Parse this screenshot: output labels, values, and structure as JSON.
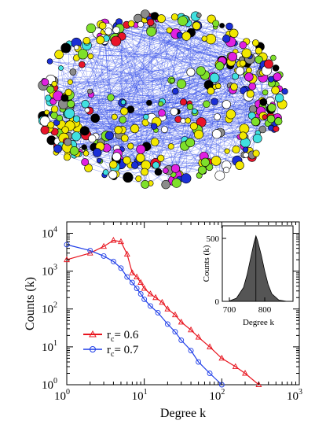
{
  "network": {
    "node_colors": [
      "#f2e800",
      "#f2e800",
      "#f2e800",
      "#f2e800",
      "#7ee02a",
      "#7ee02a",
      "#e8142a",
      "#1b2fd6",
      "#ffffff",
      "#8b8b8b",
      "#e020e0",
      "#40e0e0",
      "#000000"
    ],
    "edge_color": "#2a45e8"
  },
  "chart_data": [
    {
      "type": "line",
      "xlabel": "Degree k",
      "ylabel": "Counts (k)",
      "x_scale": "log",
      "y_scale": "log",
      "xlim": [
        1,
        1000
      ],
      "ylim": [
        1,
        20000
      ],
      "x_ticks": [
        {
          "v": 1,
          "b": "10",
          "e": "0"
        },
        {
          "v": 10,
          "b": "10",
          "e": "1"
        },
        {
          "v": 100,
          "b": "10",
          "e": "2"
        },
        {
          "v": 1000,
          "b": "10",
          "e": "3"
        }
      ],
      "y_ticks": [
        {
          "v": 1,
          "b": "10",
          "e": "0"
        },
        {
          "v": 10,
          "b": "10",
          "e": "1"
        },
        {
          "v": 100,
          "b": "10",
          "e": "2"
        },
        {
          "v": 1000,
          "b": "10",
          "e": "3"
        },
        {
          "v": 10000,
          "b": "10",
          "e": "4"
        }
      ],
      "series": [
        {
          "name": "r_c = 0.6",
          "label_main": "r",
          "label_sub": "c",
          "label_rest": "= 0.6",
          "color": "#e8141e",
          "marker": "triangle",
          "x": [
            1,
            2,
            3,
            4,
            5,
            6,
            7,
            8,
            9,
            10,
            12,
            14,
            17,
            20,
            25,
            30,
            40,
            50,
            70,
            100,
            150,
            200,
            300
          ],
          "y": [
            2000,
            3000,
            4500,
            6500,
            6000,
            2800,
            900,
            700,
            500,
            350,
            250,
            200,
            150,
            100,
            70,
            45,
            28,
            18,
            10,
            5,
            3,
            2,
            1
          ]
        },
        {
          "name": "r_c = 0.7",
          "label_main": "r",
          "label_sub": "c",
          "label_rest": "= 0.7",
          "color": "#1e3de8",
          "marker": "circle",
          "x": [
            1,
            2,
            3,
            4,
            5,
            6,
            7,
            8,
            9,
            10,
            12,
            15,
            20,
            25,
            30,
            40,
            50,
            70,
            100
          ],
          "y": [
            5000,
            3500,
            2500,
            1800,
            1200,
            700,
            500,
            350,
            250,
            180,
            120,
            80,
            40,
            25,
            15,
            8,
            4,
            2,
            1
          ]
        }
      ]
    },
    {
      "type": "area",
      "xlabel": "Degree k",
      "ylabel": "Counts (k)",
      "xlim": [
        680,
        880
      ],
      "ylim": [
        0,
        600
      ],
      "x_ticks": [
        700,
        800
      ],
      "y_ticks": [
        0,
        500
      ],
      "color": "#555555",
      "peak_x": 775,
      "peak_y": 520,
      "x": [
        700,
        720,
        740,
        750,
        760,
        770,
        775,
        780,
        790,
        800,
        810,
        820,
        840,
        860
      ],
      "y": [
        3,
        25,
        110,
        210,
        340,
        470,
        520,
        480,
        370,
        240,
        130,
        60,
        10,
        1
      ]
    }
  ]
}
